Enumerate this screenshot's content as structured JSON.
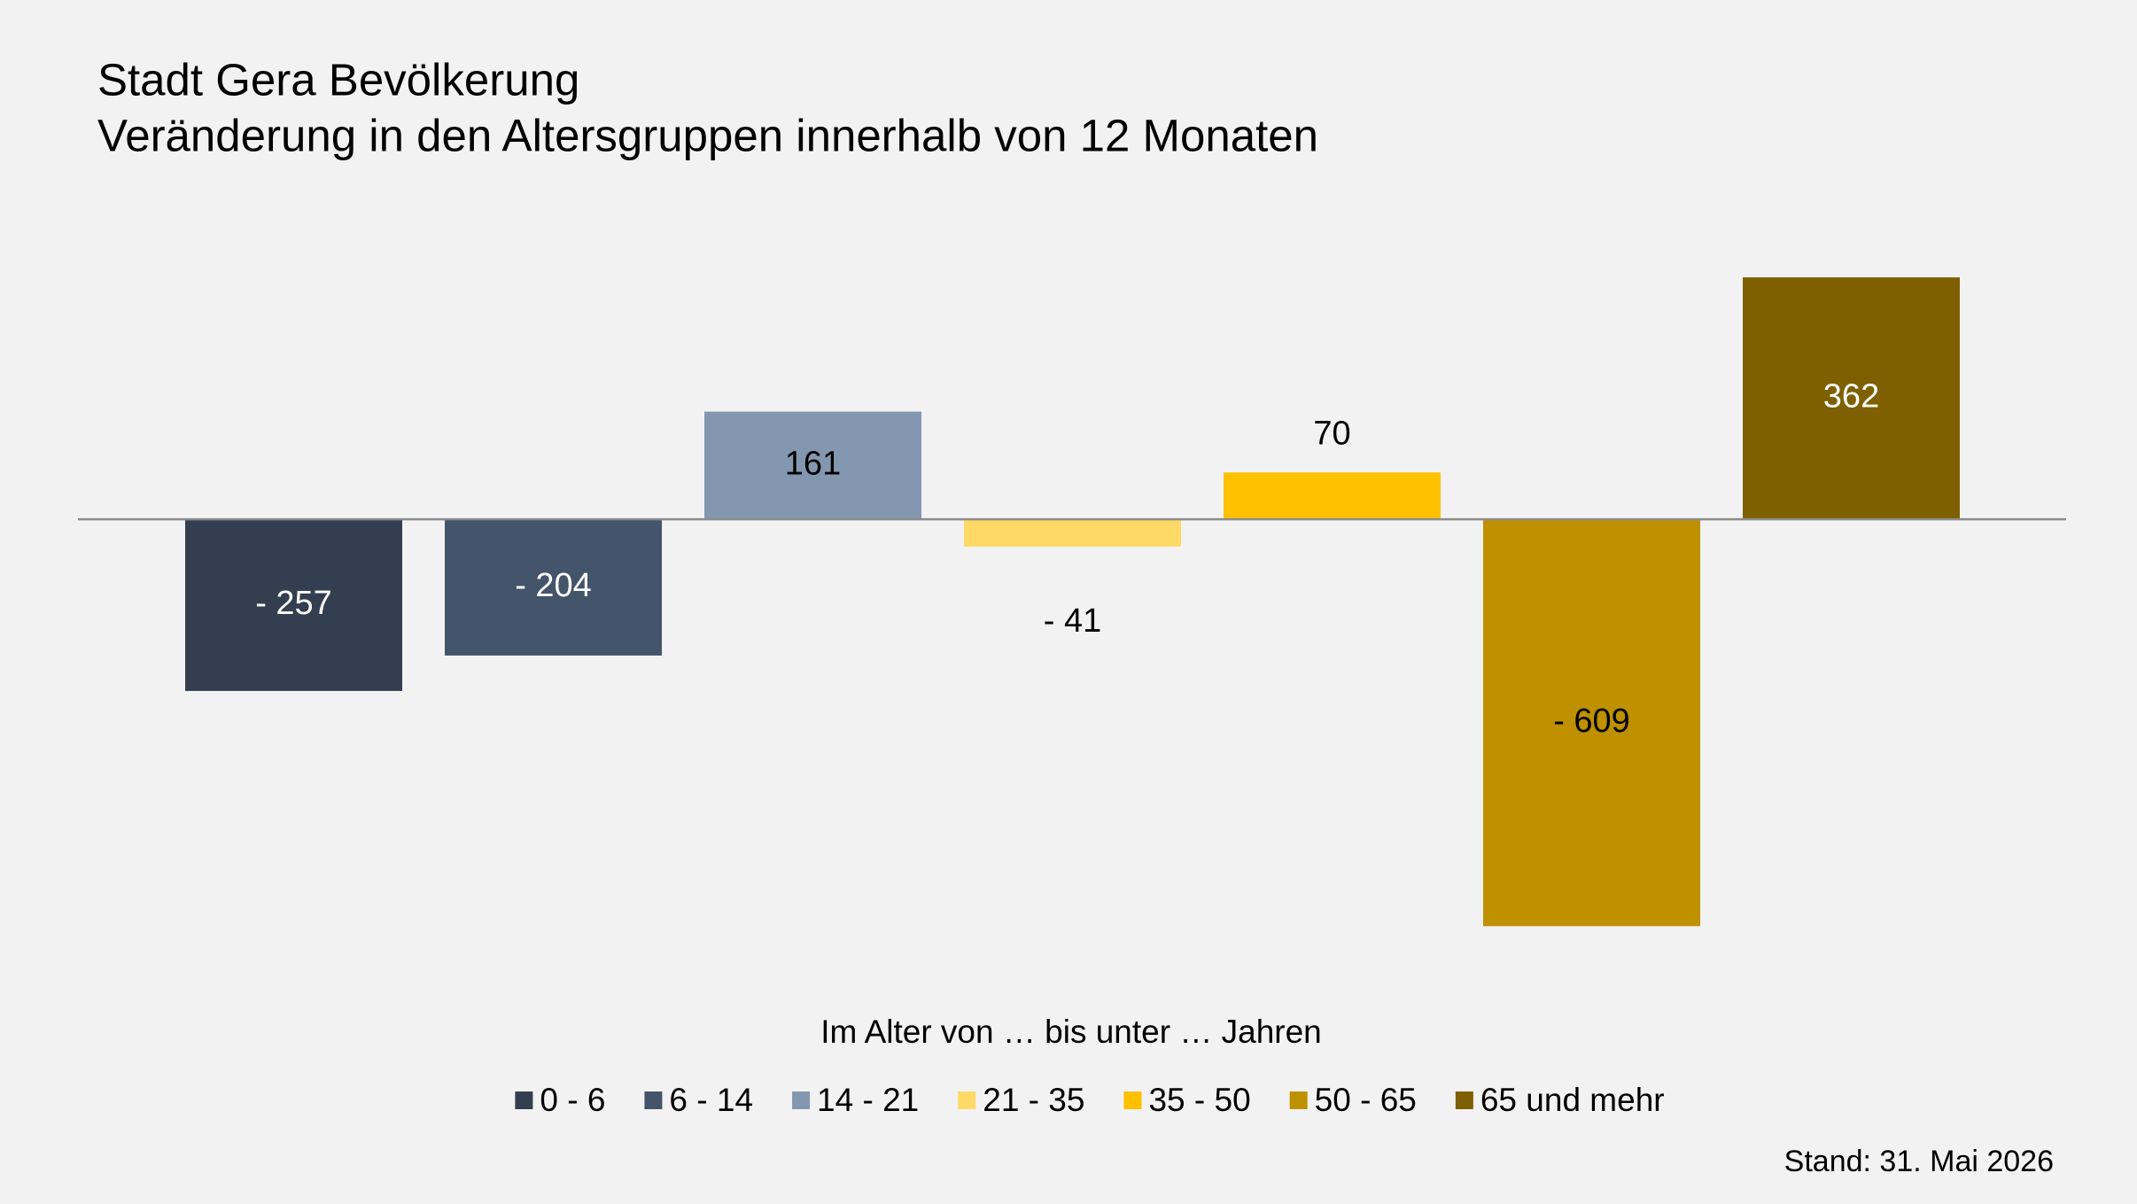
{
  "chart_data": {
    "type": "bar",
    "title": "Stadt Gera Bevölkerung",
    "subtitle": "Veränderung in den Altersgruppen innerhalb von 12 Monaten",
    "legend_title": "Im Alter von … bis unter … Jahren",
    "note": "Stand: 31. Mai 2026",
    "ylim": [
      -700,
      500
    ],
    "series": [
      {
        "name": "0 - 6",
        "color": "#333f50",
        "values": [
          -257
        ],
        "value_labels": [
          "- 257"
        ]
      },
      {
        "name": "6 - 14",
        "color": "#44546a",
        "values": [
          -204
        ],
        "value_labels": [
          "- 204"
        ]
      },
      {
        "name": "14 - 21",
        "color": "#8497b0",
        "values": [
          161
        ]
      },
      {
        "name": "21 - 35",
        "color": "#ffd966",
        "values": [
          -41
        ],
        "value_labels": [
          "- 41"
        ]
      },
      {
        "name": "35 - 50",
        "color": "#ffc000",
        "values": [
          70
        ]
      },
      {
        "name": "50 - 65",
        "color": "#bf9000",
        "values": [
          -609
        ],
        "value_labels": [
          "- 609"
        ]
      },
      {
        "name": "65 und mehr",
        "color": "#7f6000",
        "values": [
          362
        ]
      }
    ]
  }
}
